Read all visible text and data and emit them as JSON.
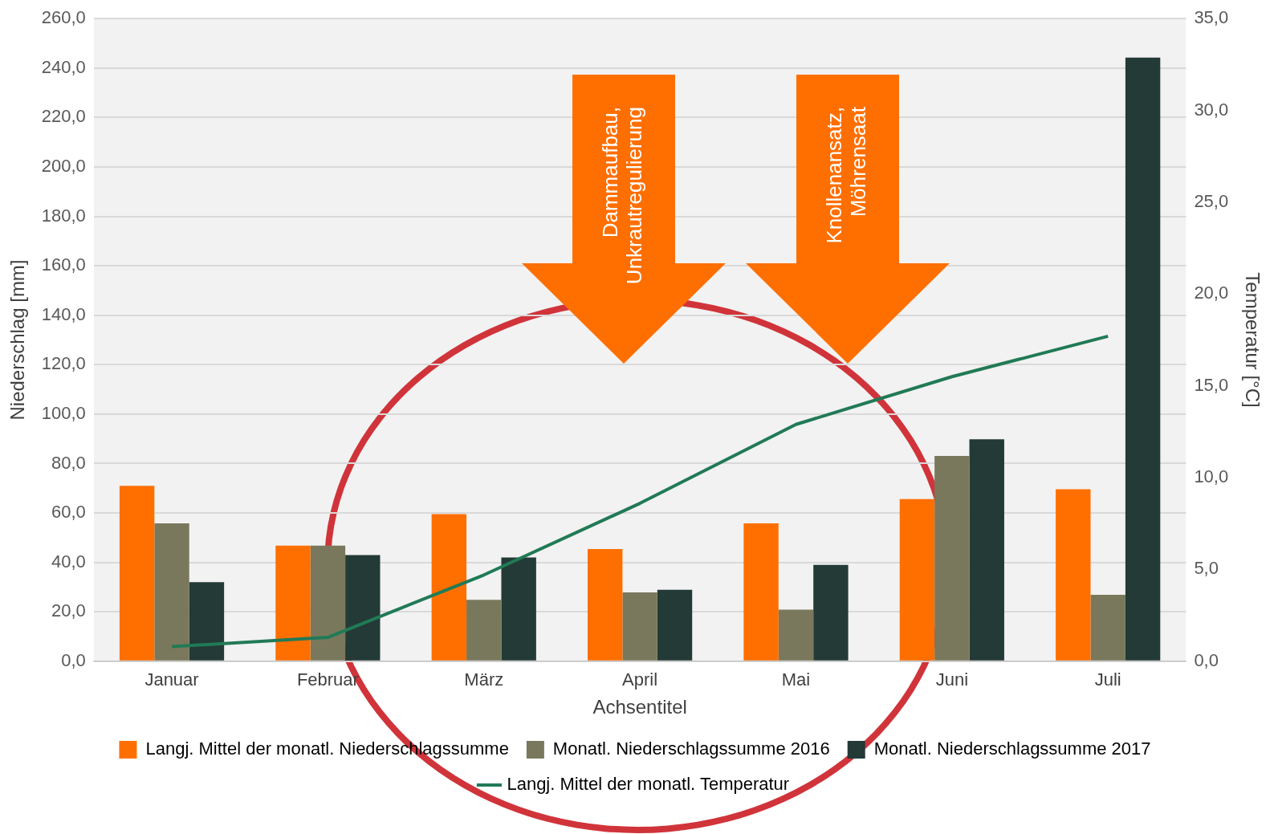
{
  "chart_data": {
    "type": "bar",
    "xlabel": "Achsentitel",
    "ylabel": "Niederschlag [mm]",
    "y2label": "Temperatur [°C]",
    "categories": [
      "Januar",
      "Februar",
      "März",
      "April",
      "Mai",
      "Juni",
      "Juli"
    ],
    "series": [
      {
        "name": "Langj. Mittel der monatl. Niederschlagssumme",
        "color": "#ff6f00",
        "values": [
          71.0,
          46.8,
          59.5,
          45.4,
          55.8,
          65.6,
          69.6
        ]
      },
      {
        "name": "Monatl. Niederschlagssumme 2016",
        "color": "#7a785c",
        "values": [
          55.8,
          46.8,
          24.9,
          27.9,
          20.9,
          83.1,
          26.9
        ]
      },
      {
        "name": "Monatl. Niederschlagssumme 2017",
        "color": "#233a36",
        "values": [
          32.0,
          43.0,
          42.0,
          28.9,
          39.0,
          89.8,
          244.2
        ]
      },
      {
        "name": "Langj. Mittel der monatl. Temperatur",
        "type": "line",
        "axis": "y2",
        "color": "#217a56",
        "marker": "none",
        "values": [
          0.8,
          1.3,
          4.7,
          8.6,
          12.9,
          15.5,
          17.7
        ]
      }
    ],
    "ylim": [
      0,
      260
    ],
    "yticks": [
      {
        "value": 0,
        "label": "0,0"
      },
      {
        "value": 20,
        "label": "20,0"
      },
      {
        "value": 40,
        "label": "40,0"
      },
      {
        "value": 60,
        "label": "60,0"
      },
      {
        "value": 80,
        "label": "80,0"
      },
      {
        "value": 100,
        "label": "100,0"
      },
      {
        "value": 120,
        "label": "120,0"
      },
      {
        "value": 140,
        "label": "140,0"
      },
      {
        "value": 160,
        "label": "160,0"
      },
      {
        "value": 180,
        "label": "180,0"
      },
      {
        "value": 200,
        "label": "200,0"
      },
      {
        "value": 220,
        "label": "220,0"
      },
      {
        "value": 240,
        "label": "240,0"
      },
      {
        "value": 260,
        "label": "260,0"
      }
    ],
    "y2lim": [
      0,
      35
    ],
    "y2ticks": [
      {
        "value": 0,
        "label": "0,0"
      },
      {
        "value": 5,
        "label": "5,0"
      },
      {
        "value": 10,
        "label": "10,0"
      },
      {
        "value": 15,
        "label": "15,0"
      },
      {
        "value": 20,
        "label": "20,0"
      },
      {
        "value": 25,
        "label": "25,0"
      },
      {
        "value": 30,
        "label": "30,0"
      },
      {
        "value": 35,
        "label": "35,0"
      }
    ],
    "annotations": [
      "Dammaufbau, Unkrautregulierung",
      "Knollenansatz, Möhrensaat"
    ],
    "grid": "y",
    "legend": "bottom"
  }
}
